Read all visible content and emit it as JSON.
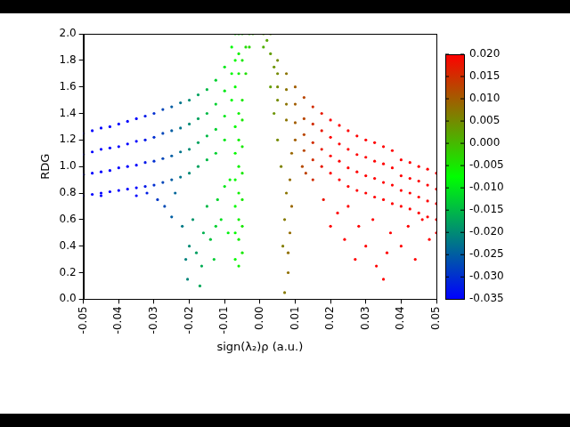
{
  "chart_data": {
    "type": "scatter",
    "x_label": "sign(λ₂)ρ (a.u.)",
    "y_label": "RDG",
    "xlim": [
      -0.05,
      0.05
    ],
    "ylim": [
      0,
      2
    ],
    "xticks": [
      -0.05,
      -0.04,
      -0.03,
      -0.02,
      -0.01,
      {
        "value": 0,
        "label": "0.00"
      },
      0.01,
      0.02,
      0.03,
      0.04,
      0.05
    ],
    "yticks": [
      {
        "value": 0,
        "label": "0.0"
      },
      0.2,
      0.4,
      0.6,
      0.8,
      {
        "value": 1,
        "label": "1.0"
      },
      1.2,
      1.4,
      1.6,
      1.8,
      {
        "value": 2,
        "label": "2.0"
      }
    ],
    "grid": false,
    "colorbar": {
      "range": [
        -0.035,
        0.02
      ],
      "ticks": [
        -0.035,
        {
          "value": -0.03,
          "label": "-0.030"
        },
        {
          "value": -0.025,
          "label": "-0.025"
        },
        {
          "value": -0.02,
          "label": "-0.020"
        },
        -0.015,
        {
          "value": -0.01,
          "label": "-0.010"
        },
        -0.005,
        {
          "value": 0,
          "label": "0.000"
        },
        0.005,
        {
          "value": 0.01,
          "label": "0.010"
        },
        0.015,
        {
          "value": 0.02,
          "label": "0.020"
        }
      ],
      "colors": [
        "#0000ff",
        "#00ff00",
        "#ff0000"
      ]
    },
    "x": [
      -0.05,
      -0.05,
      -0.05,
      -0.05,
      -0.0475,
      -0.0475,
      -0.0475,
      -0.0475,
      -0.045,
      -0.045,
      -0.045,
      -0.045,
      -0.0425,
      -0.0425,
      -0.0425,
      -0.0425,
      -0.04,
      -0.04,
      -0.04,
      -0.04,
      -0.0375,
      -0.0375,
      -0.0375,
      -0.0375,
      -0.035,
      -0.035,
      -0.035,
      -0.035,
      -0.0325,
      -0.0325,
      -0.0325,
      -0.0325,
      -0.03,
      -0.03,
      -0.03,
      -0.03,
      -0.0275,
      -0.0275,
      -0.0275,
      -0.0275,
      -0.025,
      -0.025,
      -0.025,
      -0.025,
      -0.0225,
      -0.0225,
      -0.0225,
      -0.0225,
      -0.02,
      -0.02,
      -0.02,
      -0.02,
      -0.0175,
      -0.0175,
      -0.0175,
      -0.0175,
      -0.015,
      -0.015,
      -0.015,
      -0.015,
      -0.0125,
      -0.0125,
      -0.0125,
      -0.0125,
      -0.01,
      -0.01,
      -0.01,
      -0.01,
      -0.008,
      -0.008,
      -0.008,
      -0.007,
      -0.007,
      -0.007,
      -0.006,
      -0.006,
      -0.006,
      -0.005,
      -0.005,
      -0.005,
      -0.007,
      -0.007,
      -0.007,
      -0.007,
      -0.007,
      -0.007,
      -0.006,
      -0.006,
      -0.006,
      -0.006,
      -0.006,
      -0.006,
      -0.006,
      -0.005,
      -0.005,
      -0.005,
      -0.005,
      -0.005,
      -0.005,
      -0.029,
      -0.027,
      -0.025,
      -0.024,
      -0.022,
      -0.021,
      -0.0205,
      -0.02,
      -0.019,
      -0.018,
      -0.017,
      -0.0165,
      -0.016,
      -0.015,
      -0.014,
      -0.013,
      -0.0125,
      -0.012,
      -0.011,
      -0.01,
      -0.009,
      -0.0085,
      -0.035,
      -0.032,
      -0.045,
      -0.004,
      -0.004,
      -0.003,
      -0.003,
      -0.002,
      0.001,
      0.001,
      0.002,
      0.003,
      0.003,
      0.005,
      0.005,
      0.005,
      0.005,
      0.0075,
      0.0075,
      0.0075,
      0.0075,
      0.01,
      0.01,
      0.01,
      0.01,
      0.0125,
      0.0125,
      0.0125,
      0.0125,
      0.015,
      0.015,
      0.015,
      0.015,
      0.0175,
      0.0175,
      0.0175,
      0.0175,
      0.02,
      0.02,
      0.02,
      0.02,
      0.0225,
      0.0225,
      0.0225,
      0.0225,
      0.025,
      0.025,
      0.025,
      0.025,
      0.0275,
      0.0275,
      0.0275,
      0.0275,
      0.03,
      0.03,
      0.03,
      0.03,
      0.0325,
      0.0325,
      0.0325,
      0.0325,
      0.035,
      0.035,
      0.035,
      0.035,
      0.0375,
      0.0375,
      0.0375,
      0.0375,
      0.04,
      0.04,
      0.04,
      0.04,
      0.0425,
      0.0425,
      0.0425,
      0.0425,
      0.045,
      0.045,
      0.045,
      0.045,
      0.0475,
      0.0475,
      0.0475,
      0.0475,
      0.05,
      0.05,
      0.05,
      0.05,
      0.007,
      0.008,
      0.008,
      0.0085,
      0.009,
      0.0085,
      0.009,
      0.0065,
      0.007,
      0.0075,
      0.006,
      0.005,
      0.004,
      0.003,
      0.004,
      0.018,
      0.02,
      0.022,
      0.024,
      0.025,
      0.027,
      0.028,
      0.03,
      0.032,
      0.033,
      0.035,
      0.036,
      0.037,
      0.04,
      0.042,
      0.044,
      0.046,
      0.048,
      0.05,
      0.015,
      0.013,
      0.012
    ],
    "values": [
      0.78,
      0.94,
      1.09,
      1.25,
      0.79,
      0.95,
      1.11,
      1.27,
      0.8,
      0.96,
      1.13,
      1.29,
      0.81,
      0.97,
      1.14,
      1.3,
      0.82,
      0.99,
      1.15,
      1.32,
      0.83,
      1.0,
      1.17,
      1.34,
      0.84,
      1.01,
      1.19,
      1.36,
      0.85,
      1.03,
      1.2,
      1.38,
      0.86,
      1.04,
      1.22,
      1.4,
      0.88,
      1.06,
      1.25,
      1.43,
      0.9,
      1.08,
      1.27,
      1.45,
      0.92,
      1.11,
      1.29,
      1.48,
      0.95,
      1.13,
      1.32,
      1.5,
      1.0,
      1.18,
      1.36,
      1.54,
      1.05,
      1.23,
      1.4,
      1.58,
      1.1,
      1.28,
      1.47,
      1.65,
      1.2,
      1.38,
      1.57,
      1.75,
      1.5,
      1.7,
      1.9,
      1.6,
      1.8,
      2.0,
      1.7,
      1.85,
      2.0,
      1.5,
      1.8,
      2.0,
      0.3,
      0.5,
      0.7,
      0.9,
      1.1,
      1.3,
      0.25,
      0.45,
      0.6,
      0.8,
      1.0,
      1.2,
      1.4,
      0.35,
      0.55,
      0.75,
      0.95,
      1.15,
      1.35,
      0.75,
      0.7,
      0.62,
      0.8,
      0.55,
      0.3,
      0.15,
      0.4,
      0.6,
      0.35,
      0.1,
      0.25,
      0.5,
      0.7,
      0.45,
      0.3,
      0.55,
      0.75,
      0.6,
      0.85,
      0.5,
      0.9,
      0.78,
      0.8,
      0.78,
      1.7,
      1.9,
      1.9,
      2.0,
      2.0,
      2.0,
      1.9,
      1.95,
      1.85,
      2.0,
      1.5,
      1.6,
      1.7,
      1.8,
      1.35,
      1.47,
      1.58,
      1.7,
      1.2,
      1.33,
      1.47,
      1.6,
      1.12,
      1.24,
      1.36,
      1.52,
      1.05,
      1.18,
      1.32,
      1.45,
      1.0,
      1.13,
      1.27,
      1.4,
      0.95,
      1.08,
      1.22,
      1.35,
      0.9,
      1.04,
      1.17,
      1.31,
      0.85,
      0.99,
      1.13,
      1.27,
      0.82,
      0.96,
      1.09,
      1.23,
      0.8,
      0.93,
      1.07,
      1.2,
      0.77,
      0.91,
      1.04,
      1.18,
      0.75,
      0.88,
      1.02,
      1.15,
      0.72,
      0.86,
      0.99,
      1.12,
      0.7,
      0.82,
      0.93,
      1.05,
      0.68,
      0.8,
      0.91,
      1.03,
      0.65,
      0.77,
      0.89,
      1.0,
      0.62,
      0.74,
      0.86,
      0.98,
      0.6,
      0.72,
      0.83,
      0.95,
      0.05,
      0.2,
      0.35,
      0.5,
      0.7,
      0.9,
      1.1,
      0.4,
      0.6,
      0.8,
      1.0,
      1.2,
      1.4,
      1.6,
      1.75,
      0.75,
      0.55,
      0.65,
      0.45,
      0.7,
      0.3,
      0.55,
      0.4,
      0.6,
      0.25,
      0.15,
      0.35,
      0.5,
      0.4,
      0.55,
      0.3,
      0.6,
      0.45,
      0.5,
      0.9,
      0.95,
      1.0
    ]
  }
}
